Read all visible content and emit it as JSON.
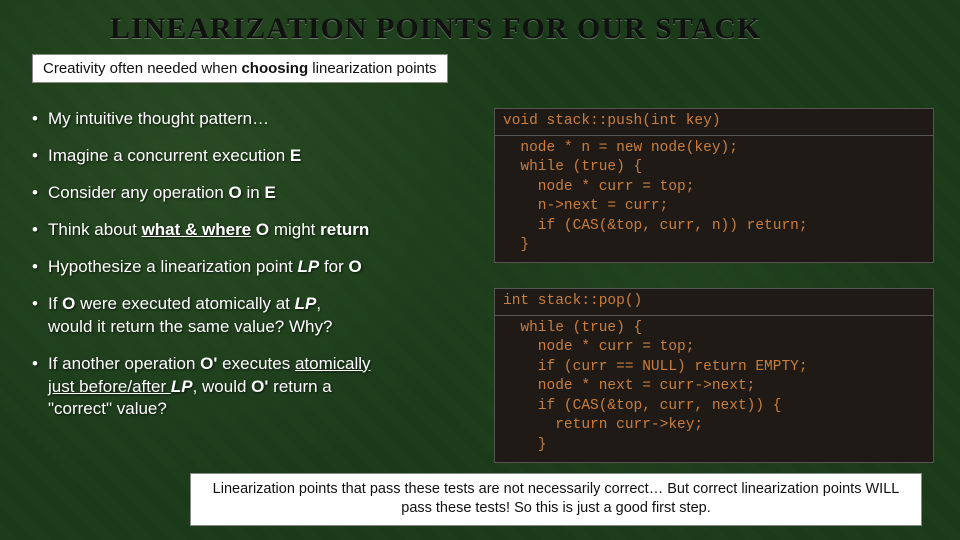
{
  "title": "LINEARIZATION POINTS FOR OUR STACK",
  "banner": {
    "pre": "Creativity often needed when ",
    "bold": "choosing",
    "post": " linearization points"
  },
  "bullets": {
    "b1": "My intuitive thought pattern…",
    "b2a": "Imagine a concurrent execution ",
    "b2b": "E",
    "b3a": "Consider any operation ",
    "b3b": "O",
    "b3c": " in ",
    "b3d": "E",
    "b4a": "Think about ",
    "b4b": "what & where",
    "b4c": " O",
    "b4d": " might ",
    "b4e": "return",
    "b5a": "Hypothesize a linearization point ",
    "b5b": "LP",
    "b5c": " for ",
    "b5d": "O",
    "b6a": "If ",
    "b6b": "O",
    "b6c": " were executed atomically at ",
    "b6d": "LP",
    "b6e": ",\nwould it return the same value? Why?",
    "b7a": "If another operation ",
    "b7b": "O'",
    "b7c": " executes ",
    "b7d": "atomically\njust before/after ",
    "b7e": "LP",
    "b7f": ", would ",
    "b7g": "O'",
    "b7h": " return a\n\"correct\" value?"
  },
  "push": {
    "sig": "void stack::push(int key)",
    "body": "  node * n = new node(key);\n  while (true) {\n    node * curr = top;\n    n->next = curr;\n    if (CAS(&top, curr, n)) return;\n  }"
  },
  "pop": {
    "sig": "int stack::pop()",
    "body": "  while (true) {\n    node * curr = top;\n    if (curr == NULL) return EMPTY;\n    node * next = curr->next;\n    if (CAS(&top, curr, next)) {\n      return curr->key;\n    }"
  },
  "footer": "Linearization points that pass these tests are not necessarily correct… But correct linearization points WILL pass these tests! So this is just a good first step.",
  "colors": {
    "code_text": "#c97e3d",
    "code_bg": "#1f1a15",
    "slide_bg": "#1a3a1a",
    "banner_bg": "#ffffff"
  }
}
